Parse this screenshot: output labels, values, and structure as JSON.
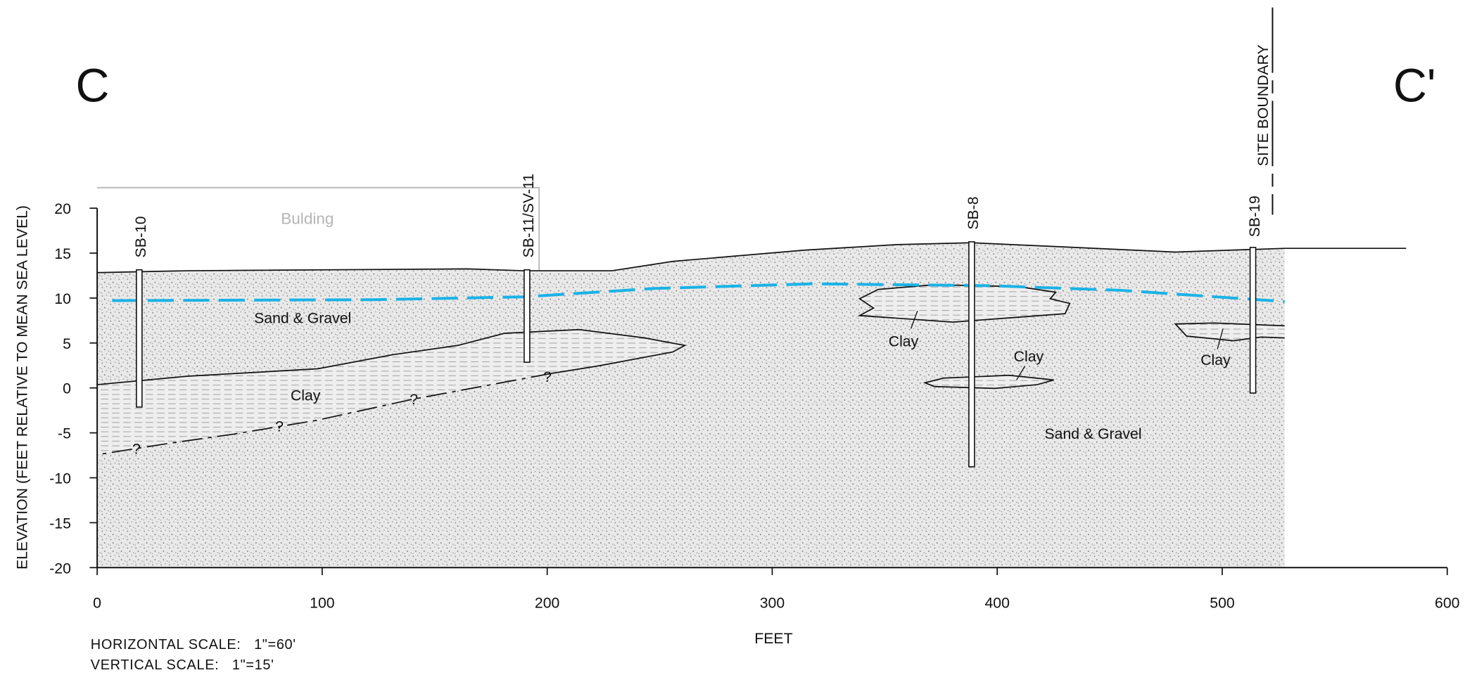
{
  "title_left": "C",
  "title_right": "C'",
  "y_axis": {
    "label": "ELEVATION (FEET RELATIVE TO MEAN SEA LEVEL)",
    "lim": [
      -20,
      20
    ],
    "ticks": [
      20,
      15,
      10,
      5,
      0,
      -5,
      -10,
      -15,
      -20
    ]
  },
  "x_axis": {
    "label": "FEET",
    "lim": [
      0,
      600
    ],
    "ticks": [
      0,
      100,
      200,
      300,
      400,
      500,
      600
    ]
  },
  "building": "Bulding",
  "site_boundary": "SITE BOUNDARY",
  "borings": [
    "SB-10",
    "SB-11/SV-11",
    "SB-8",
    "SB-19"
  ],
  "units": [
    "Sand & Gravel",
    "Clay",
    "Clay",
    "Clay",
    "Clay",
    "Sand & Gravel"
  ],
  "uncertain": [
    "?",
    "?",
    "?",
    "?"
  ],
  "notes": [
    "HORIZONTAL SCALE:   1\"=60'",
    "VERTICAL SCALE:   1\"=15'"
  ]
}
